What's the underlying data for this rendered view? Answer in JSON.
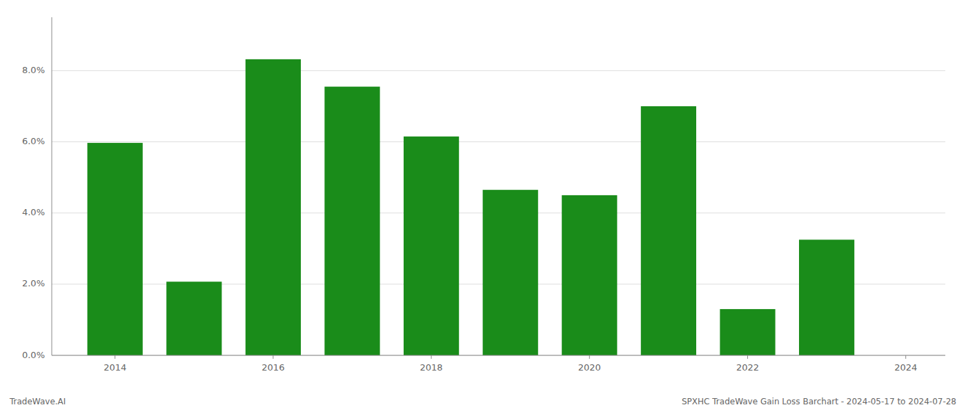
{
  "chart_data": {
    "type": "bar",
    "x": [
      2014,
      2015,
      2016,
      2017,
      2018,
      2019,
      2020,
      2021,
      2022,
      2023
    ],
    "values": [
      0.0597,
      0.0207,
      0.0832,
      0.0755,
      0.0615,
      0.0465,
      0.045,
      0.07,
      0.013,
      0.0325
    ],
    "color": "#1a8c1a",
    "xlim": [
      2013.2,
      2024.5
    ],
    "xticks": [
      2014,
      2016,
      2018,
      2020,
      2022,
      2024
    ],
    "ylim": [
      0,
      0.095
    ],
    "yticks": [
      {
        "value": 0.0,
        "label": "0.0%"
      },
      {
        "value": 0.02,
        "label": "2.0%"
      },
      {
        "value": 0.04,
        "label": "4.0%"
      },
      {
        "value": 0.06,
        "label": "6.0%"
      },
      {
        "value": 0.08,
        "label": "8.0%"
      }
    ],
    "grid": true,
    "annotations": [
      "TradeWave.AI",
      "SPXHC TradeWave Gain Loss Barchart - 2024-05-17 to 2024-07-28"
    ]
  }
}
